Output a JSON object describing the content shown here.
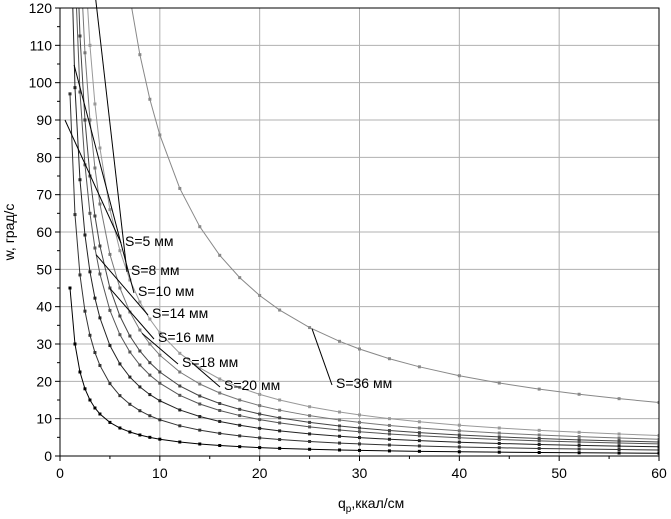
{
  "chart_data": {
    "type": "line",
    "title": "",
    "xlabel_main": "q",
    "xlabel_sub": "p",
    "xlabel_rest": ",ккал/см",
    "ylabel": "w, град/с",
    "xlim": [
      0,
      60
    ],
    "ylim": [
      0,
      120
    ],
    "x_ticks": [
      0,
      10,
      20,
      30,
      40,
      50,
      60
    ],
    "y_ticks": [
      0,
      10,
      20,
      30,
      40,
      50,
      60,
      70,
      80,
      90,
      100,
      110,
      120
    ],
    "grid": true,
    "legend": "none",
    "series": [
      {
        "label": "S=5 мм",
        "k": 45,
        "color": "#000000"
      },
      {
        "label": "S=8 мм",
        "k": 97,
        "color": "#333333"
      },
      {
        "label": "S=10 мм",
        "k": 148,
        "color": "#222222"
      },
      {
        "label": "S=14 мм",
        "k": 195,
        "color": "#555555"
      },
      {
        "label": "S=16 мм",
        "k": 225,
        "color": "#444444"
      },
      {
        "label": "S=18 мм",
        "k": 270,
        "color": "#777777"
      },
      {
        "label": "S=20 мм",
        "k": 330,
        "color": "#999999"
      },
      {
        "label": "S=36 мм",
        "k": 860,
        "color": "#888888"
      }
    ],
    "x_values": [
      1,
      1.5,
      2,
      2.5,
      3,
      3.5,
      4,
      5,
      6,
      7,
      8,
      9,
      10,
      12,
      14,
      16,
      18,
      20,
      22,
      25,
      28,
      30,
      33,
      36,
      40,
      44,
      48,
      52,
      56,
      60
    ]
  }
}
